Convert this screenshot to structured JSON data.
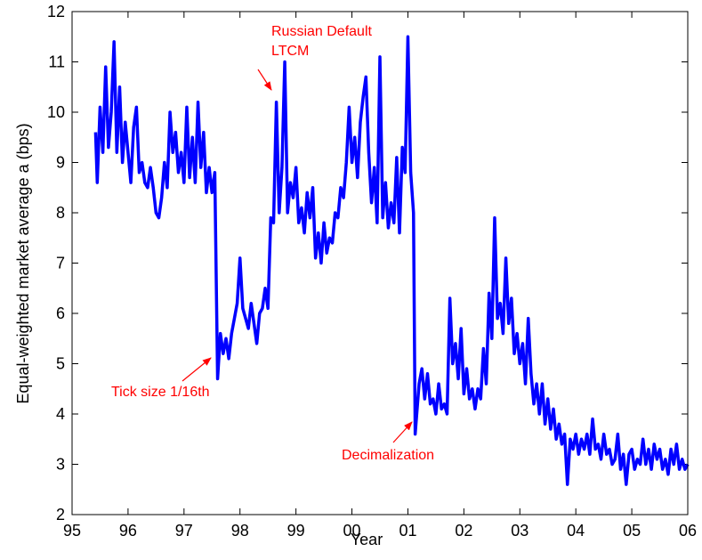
{
  "chart_data": {
    "type": "line",
    "xlabel": "Year",
    "ylabel": "Equal-weighted market average a (bps)",
    "annotations": [
      "Russian Default",
      "LTCM",
      "Tick size 1/16th",
      "Decimalization"
    ],
    "annotation_color": "#ff0000",
    "xlim": [
      1995,
      2006
    ],
    "xticks": [
      {
        "value": 1995,
        "label": "95"
      },
      {
        "value": 1996,
        "label": "96"
      },
      {
        "value": 1997,
        "label": "97"
      },
      {
        "value": 1998,
        "label": "98"
      },
      {
        "value": 1999,
        "label": "99"
      },
      {
        "value": 2000,
        "label": "00"
      },
      {
        "value": 2001,
        "label": "01"
      },
      {
        "value": 2002,
        "label": "02"
      },
      {
        "value": 2003,
        "label": "03"
      },
      {
        "value": 2004,
        "label": "04"
      },
      {
        "value": 2005,
        "label": "05"
      },
      {
        "value": 2006,
        "label": "06"
      }
    ],
    "ylim": [
      2,
      12
    ],
    "yticks": [
      2,
      3,
      4,
      5,
      6,
      7,
      8,
      9,
      10,
      11,
      12
    ],
    "grid": false,
    "x": [
      1995.42,
      1995.45,
      1995.5,
      1995.55,
      1995.6,
      1995.65,
      1995.7,
      1995.75,
      1995.8,
      1995.85,
      1995.9,
      1995.95,
      1996,
      1996.05,
      1996.1,
      1996.15,
      1996.2,
      1996.25,
      1996.3,
      1996.35,
      1996.4,
      1996.45,
      1996.5,
      1996.55,
      1996.6,
      1996.65,
      1996.7,
      1996.75,
      1996.8,
      1996.85,
      1996.9,
      1996.95,
      1997,
      1997.05,
      1997.1,
      1997.15,
      1997.2,
      1997.25,
      1997.3,
      1997.35,
      1997.4,
      1997.45,
      1997.5,
      1997.55,
      1997.6,
      1997.65,
      1997.7,
      1997.75,
      1997.8,
      1997.85,
      1997.9,
      1997.95,
      1998,
      1998.05,
      1998.1,
      1998.15,
      1998.2,
      1998.25,
      1998.3,
      1998.35,
      1998.4,
      1998.45,
      1998.5,
      1998.55,
      1998.6,
      1998.65,
      1998.7,
      1998.75,
      1998.8,
      1998.85,
      1998.9,
      1998.95,
      1999,
      1999.05,
      1999.1,
      1999.15,
      1999.2,
      1999.25,
      1999.3,
      1999.35,
      1999.4,
      1999.45,
      1999.5,
      1999.55,
      1999.6,
      1999.65,
      1999.7,
      1999.75,
      1999.8,
      1999.85,
      1999.9,
      1999.95,
      2000,
      2000.05,
      2000.1,
      2000.15,
      2000.2,
      2000.25,
      2000.3,
      2000.35,
      2000.4,
      2000.45,
      2000.5,
      2000.55,
      2000.6,
      2000.65,
      2000.7,
      2000.75,
      2000.8,
      2000.85,
      2000.9,
      2000.95,
      2001,
      2001.05,
      2001.1,
      2001.13,
      2001.2,
      2001.25,
      2001.3,
      2001.35,
      2001.4,
      2001.45,
      2001.5,
      2001.55,
      2001.6,
      2001.65,
      2001.7,
      2001.75,
      2001.8,
      2001.85,
      2001.9,
      2001.95,
      2002,
      2002.05,
      2002.1,
      2002.15,
      2002.2,
      2002.25,
      2002.3,
      2002.35,
      2002.4,
      2002.45,
      2002.5,
      2002.55,
      2002.6,
      2002.65,
      2002.7,
      2002.75,
      2002.8,
      2002.85,
      2002.9,
      2002.95,
      2003,
      2003.05,
      2003.1,
      2003.15,
      2003.2,
      2003.25,
      2003.3,
      2003.35,
      2003.4,
      2003.45,
      2003.5,
      2003.55,
      2003.6,
      2003.65,
      2003.7,
      2003.75,
      2003.8,
      2003.85,
      2003.9,
      2003.95,
      2004,
      2004.05,
      2004.1,
      2004.15,
      2004.2,
      2004.25,
      2004.3,
      2004.35,
      2004.4,
      2004.45,
      2004.5,
      2004.55,
      2004.6,
      2004.65,
      2004.7,
      2004.75,
      2004.8,
      2004.85,
      2004.9,
      2004.95,
      2005,
      2005.05,
      2005.1,
      2005.15,
      2005.2,
      2005.25,
      2005.3,
      2005.35,
      2005.4,
      2005.45,
      2005.5,
      2005.55,
      2005.6,
      2005.65,
      2005.7,
      2005.75,
      2005.8,
      2005.85,
      2005.9,
      2005.95,
      2006
    ],
    "series": [
      {
        "color": "#0000ff",
        "values": [
          9.6,
          8.6,
          10.1,
          9.2,
          10.9,
          9.3,
          10.0,
          11.4,
          9.2,
          10.5,
          9.0,
          9.8,
          9.2,
          8.6,
          9.7,
          10.1,
          8.8,
          9.0,
          8.6,
          8.5,
          8.9,
          8.5,
          8.0,
          7.9,
          8.3,
          9.0,
          8.5,
          10.0,
          9.2,
          9.6,
          8.8,
          9.2,
          8.6,
          10.1,
          8.7,
          9.5,
          8.6,
          10.2,
          8.9,
          9.6,
          8.4,
          8.9,
          8.4,
          8.8,
          4.7,
          5.6,
          5.2,
          5.5,
          5.1,
          5.6,
          5.9,
          6.2,
          7.1,
          6.1,
          5.9,
          5.7,
          6.2,
          5.8,
          5.4,
          6.0,
          6.1,
          6.5,
          6.1,
          7.9,
          7.8,
          10.2,
          8.0,
          8.9,
          11.0,
          8.0,
          8.6,
          8.3,
          8.9,
          7.8,
          8.1,
          7.6,
          8.4,
          7.9,
          8.5,
          7.1,
          7.6,
          7.0,
          7.8,
          7.2,
          7.5,
          7.4,
          8.0,
          7.9,
          8.5,
          8.3,
          9.0,
          10.1,
          9.0,
          9.5,
          8.7,
          9.8,
          10.3,
          10.7,
          9.2,
          8.2,
          8.9,
          7.8,
          11.1,
          7.9,
          8.6,
          7.7,
          8.2,
          7.8,
          9.1,
          7.6,
          9.3,
          8.8,
          11.5,
          8.8,
          8.0,
          3.6,
          4.6,
          4.9,
          4.3,
          4.8,
          4.2,
          4.3,
          4.0,
          4.6,
          4.1,
          4.2,
          4.0,
          6.3,
          5.0,
          5.4,
          4.7,
          5.7,
          4.4,
          4.9,
          4.3,
          4.5,
          4.1,
          4.5,
          4.3,
          5.3,
          4.6,
          6.4,
          5.5,
          7.9,
          5.9,
          6.2,
          5.6,
          7.1,
          5.8,
          6.3,
          5.2,
          5.6,
          5.0,
          5.4,
          4.6,
          5.9,
          4.8,
          4.2,
          4.6,
          4.0,
          4.6,
          3.8,
          4.3,
          3.7,
          4.1,
          3.5,
          3.8,
          3.4,
          3.6,
          2.6,
          3.5,
          3.3,
          3.6,
          3.2,
          3.5,
          3.3,
          3.6,
          3.2,
          3.9,
          3.3,
          3.4,
          3.1,
          3.6,
          3.2,
          3.3,
          3.0,
          3.1,
          3.6,
          2.9,
          3.2,
          2.6,
          3.2,
          3.3,
          2.9,
          3.1,
          3.0,
          3.5,
          3.0,
          3.3,
          2.9,
          3.4,
          3.1,
          3.3,
          2.9,
          3.1,
          2.8,
          3.3,
          3.0,
          3.4,
          2.9,
          3.1,
          2.9,
          3.0
        ]
      }
    ]
  }
}
